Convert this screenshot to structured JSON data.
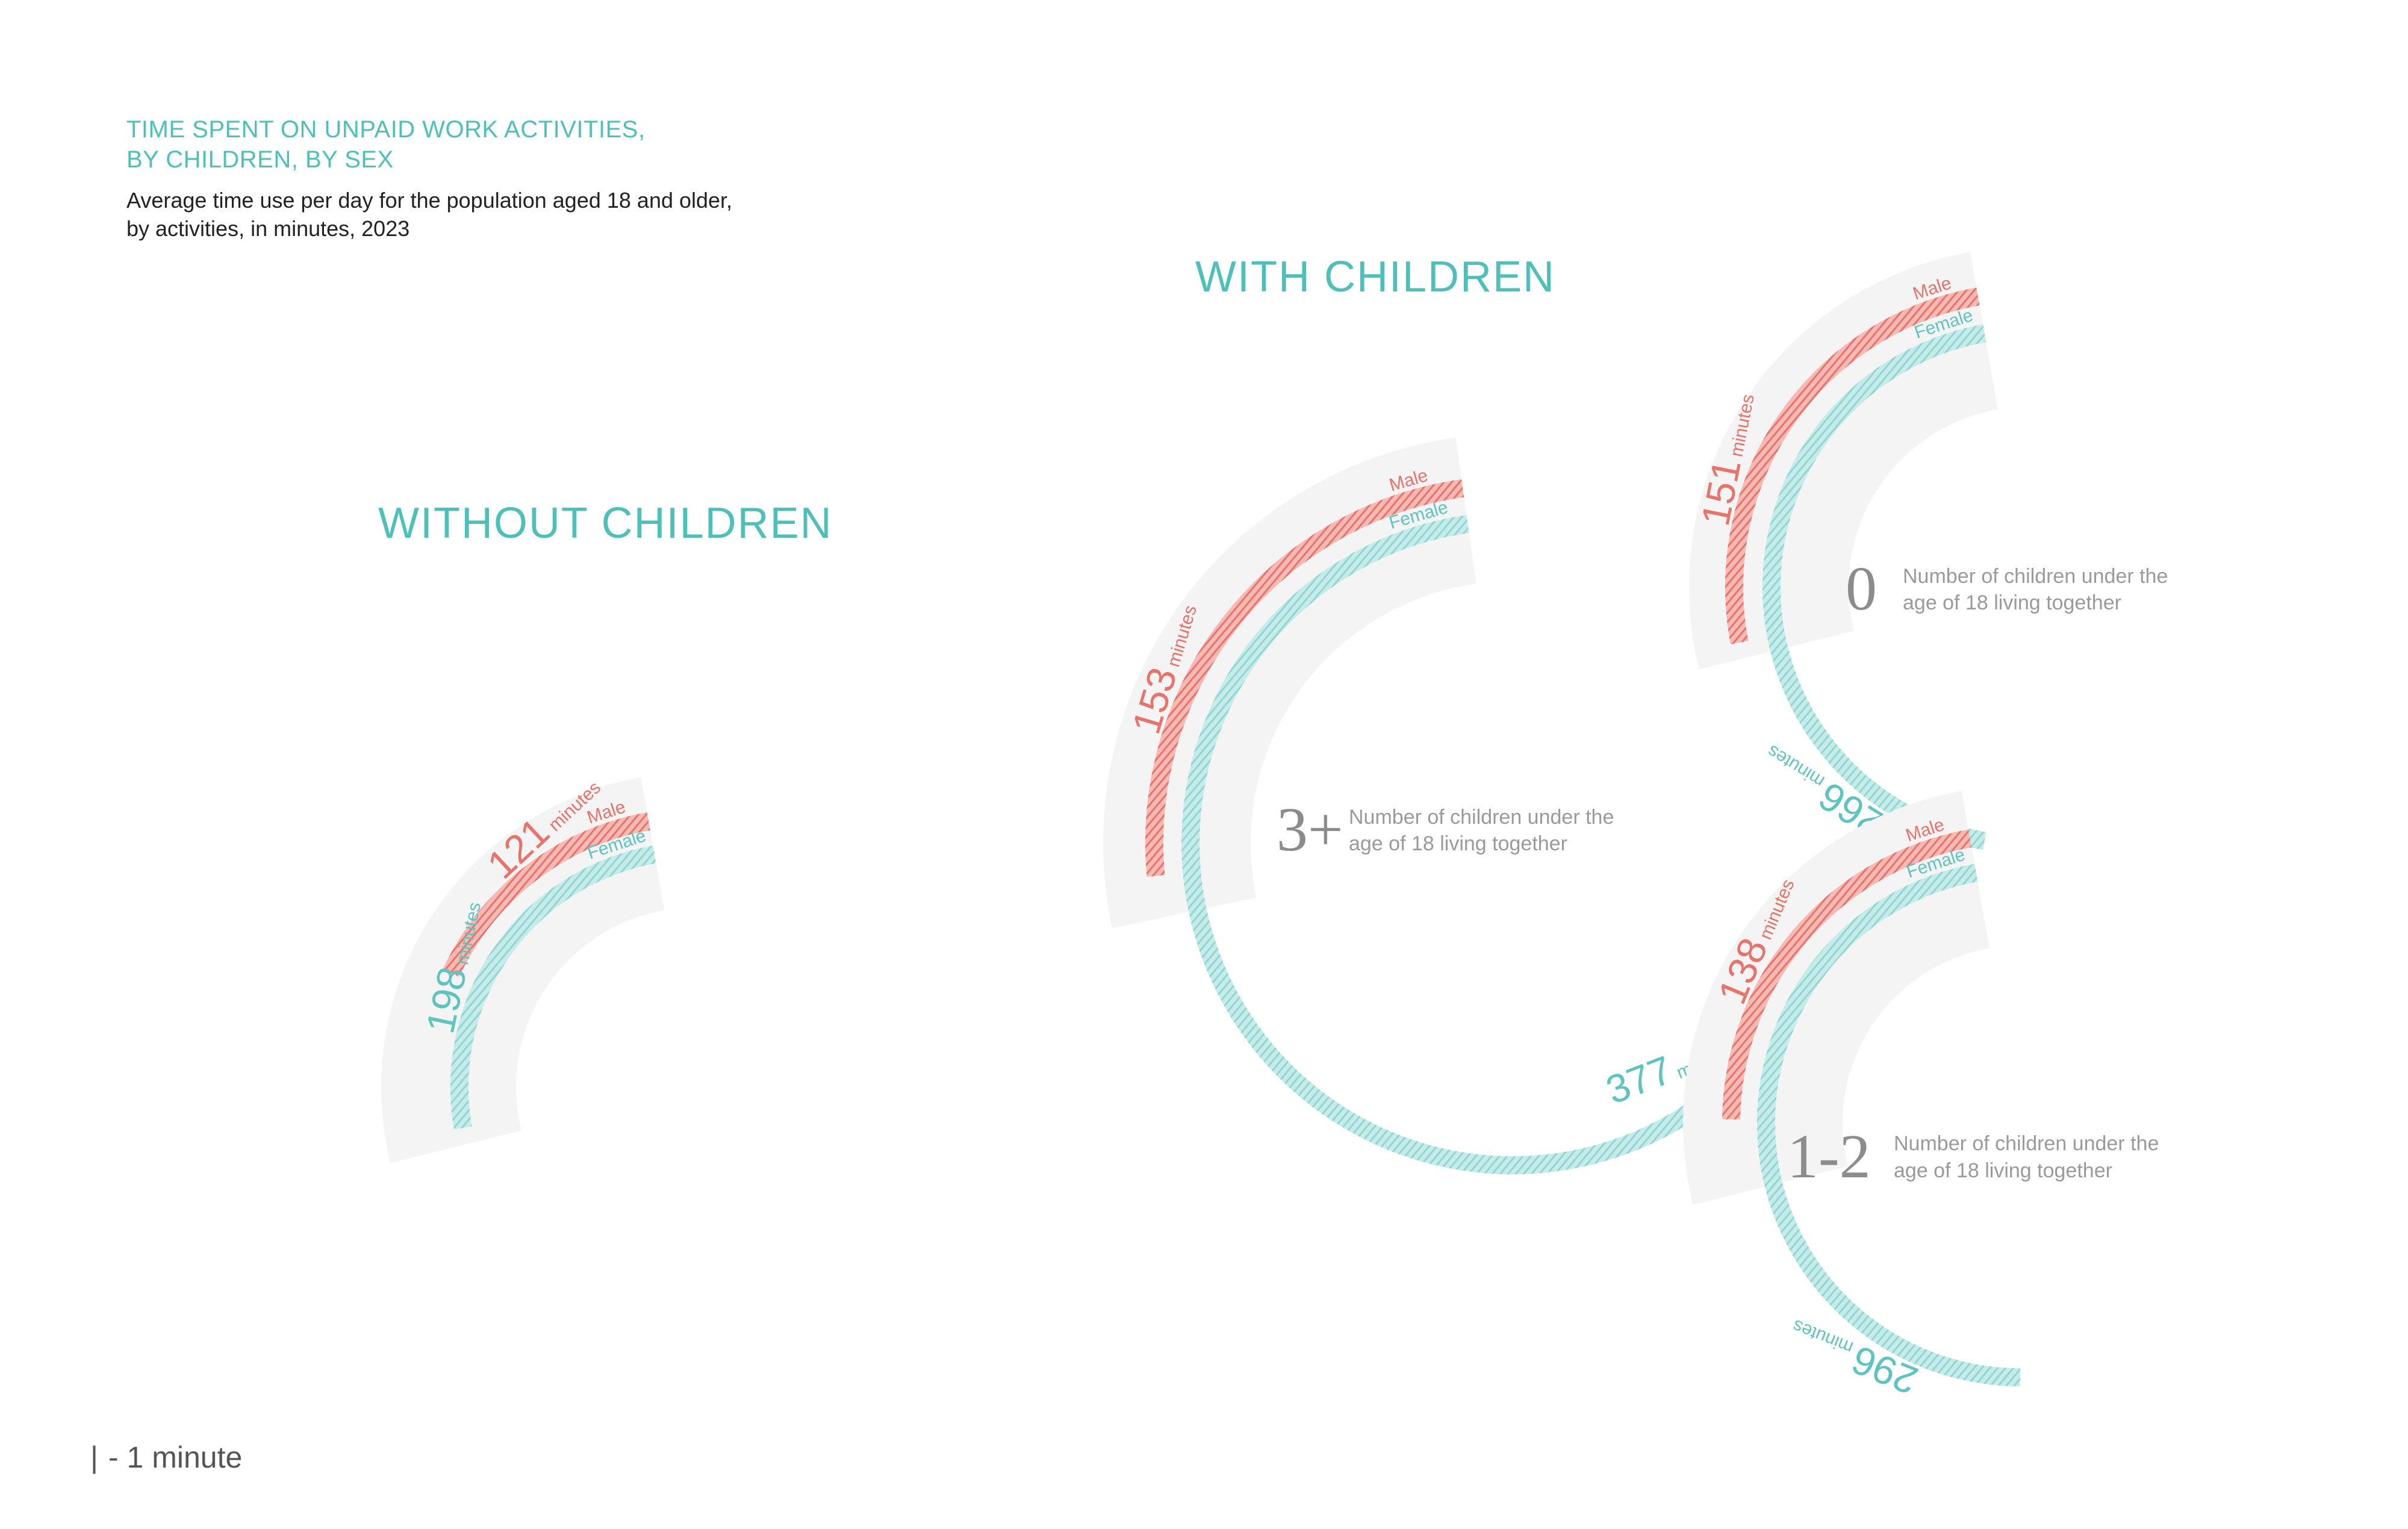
{
  "header": {
    "title_line1": "TIME SPENT ON UNPAID WORK ACTIVITIES,",
    "title_line2": "BY CHILDREN, BY SEX",
    "subtitle_line1": "Average time use per day for the population aged 18 and older,",
    "subtitle_line2": "by activities, in minutes, 2023"
  },
  "sections": {
    "without": "WITHOUT CHILDREN",
    "with": "WITH CHILDREN"
  },
  "legend": {
    "mark": "|",
    "text": "- 1 minute"
  },
  "colors": {
    "male": "#e8736a",
    "female": "#5fc4bf",
    "background_band": "#f4f4f4",
    "title": "#4fbfba"
  },
  "chart_data": [
    {
      "type": "radial-bar",
      "group": "WITHOUT CHILDREN",
      "series": [
        {
          "name": "Male",
          "value": 121,
          "unit": "minutes"
        },
        {
          "name": "Female",
          "value": 198,
          "unit": "minutes"
        }
      ]
    },
    {
      "type": "radial-bar",
      "group": "WITH CHILDREN",
      "children_count": "3+",
      "description_line1": "Number of children under the",
      "description_line2": "age of 18 living together",
      "series": [
        {
          "name": "Male",
          "value": 153,
          "unit": "minutes"
        },
        {
          "name": "Female",
          "value": 377,
          "unit": "minutes"
        }
      ]
    },
    {
      "type": "radial-bar",
      "group": "WITH CHILDREN",
      "children_count": "0",
      "description_line1": "Number of children under the",
      "description_line2": "age of 18 living together",
      "series": [
        {
          "name": "Male",
          "value": 151,
          "unit": "minutes"
        },
        {
          "name": "Female",
          "value": 266,
          "unit": "minutes"
        }
      ]
    },
    {
      "type": "radial-bar",
      "group": "WITH CHILDREN",
      "children_count": "1-2",
      "description_line1": "Number of children under the",
      "description_line2": "age of 18 living together",
      "series": [
        {
          "name": "Male",
          "value": 138,
          "unit": "minutes"
        },
        {
          "name": "Female",
          "value": 296,
          "unit": "minutes"
        }
      ]
    }
  ]
}
